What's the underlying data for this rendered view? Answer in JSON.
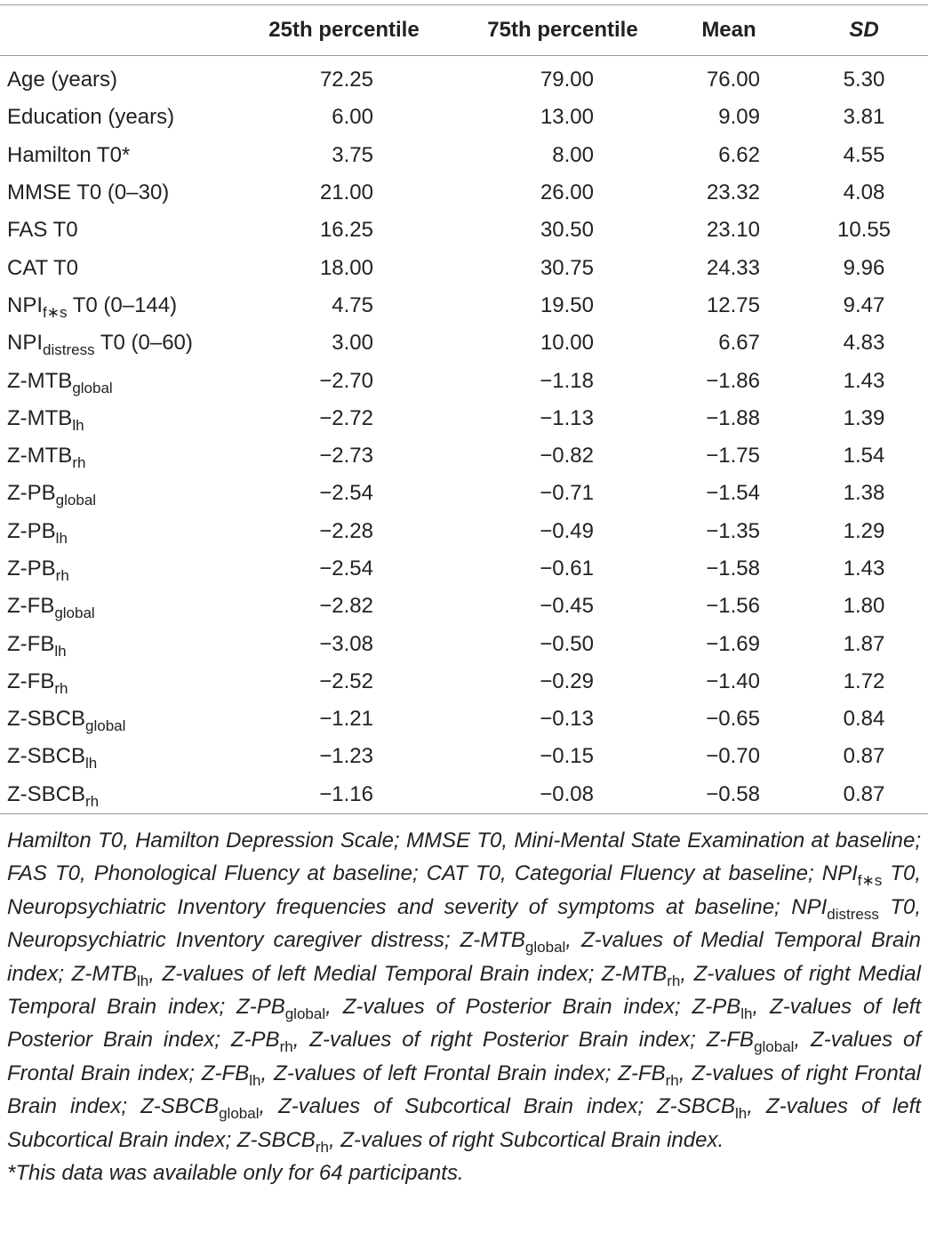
{
  "table": {
    "header": [
      "25th percentile",
      "75th percentile",
      "Mean",
      "SD"
    ],
    "rows": [
      {
        "label": [
          {
            "text": "Age (years)"
          }
        ],
        "cells": [
          "72.25",
          "79.00",
          "76.00",
          "5.30"
        ]
      },
      {
        "label": [
          {
            "text": "Education (years)"
          }
        ],
        "cells": [
          "6.00",
          "13.00",
          "9.09",
          "3.81"
        ]
      },
      {
        "label": [
          {
            "text": "Hamilton T0*"
          }
        ],
        "cells": [
          "3.75",
          "8.00",
          "6.62",
          "4.55"
        ]
      },
      {
        "label": [
          {
            "text": "MMSE T0 (0–30)"
          }
        ],
        "cells": [
          "21.00",
          "26.00",
          "23.32",
          "4.08"
        ]
      },
      {
        "label": [
          {
            "text": "FAS T0"
          }
        ],
        "cells": [
          "16.25",
          "30.50",
          "23.10",
          "10.55"
        ]
      },
      {
        "label": [
          {
            "text": "CAT T0"
          }
        ],
        "cells": [
          "18.00",
          "30.75",
          "24.33",
          "9.96"
        ]
      },
      {
        "label": [
          {
            "text": "NPI"
          },
          {
            "sub": "f∗s"
          },
          {
            "text": " T0 (0–144)"
          }
        ],
        "cells": [
          "4.75",
          "19.50",
          "12.75",
          "9.47"
        ]
      },
      {
        "label": [
          {
            "text": "NPI"
          },
          {
            "sub": "distress"
          },
          {
            "text": " T0 (0–60)"
          }
        ],
        "cells": [
          "3.00",
          "10.00",
          "6.67",
          "4.83"
        ]
      },
      {
        "label": [
          {
            "text": "Z-MTB"
          },
          {
            "sub": "global"
          }
        ],
        "cells": [
          "−2.70",
          "−1.18",
          "−1.86",
          "1.43"
        ]
      },
      {
        "label": [
          {
            "text": "Z-MTB"
          },
          {
            "sub": "lh"
          }
        ],
        "cells": [
          "−2.72",
          "−1.13",
          "−1.88",
          "1.39"
        ]
      },
      {
        "label": [
          {
            "text": "Z-MTB"
          },
          {
            "sub": "rh"
          }
        ],
        "cells": [
          "−2.73",
          "−0.82",
          "−1.75",
          "1.54"
        ]
      },
      {
        "label": [
          {
            "text": "Z-PB"
          },
          {
            "sub": "global"
          }
        ],
        "cells": [
          "−2.54",
          "−0.71",
          "−1.54",
          "1.38"
        ]
      },
      {
        "label": [
          {
            "text": "Z-PB"
          },
          {
            "sub": "lh"
          }
        ],
        "cells": [
          "−2.28",
          "−0.49",
          "−1.35",
          "1.29"
        ]
      },
      {
        "label": [
          {
            "text": "Z-PB"
          },
          {
            "sub": "rh"
          }
        ],
        "cells": [
          "−2.54",
          "−0.61",
          "−1.58",
          "1.43"
        ]
      },
      {
        "label": [
          {
            "text": "Z-FB"
          },
          {
            "sub": "global"
          }
        ],
        "cells": [
          "−2.82",
          "−0.45",
          "−1.56",
          "1.80"
        ]
      },
      {
        "label": [
          {
            "text": "Z-FB"
          },
          {
            "sub": "lh"
          }
        ],
        "cells": [
          "−3.08",
          "−0.50",
          "−1.69",
          "1.87"
        ]
      },
      {
        "label": [
          {
            "text": "Z-FB"
          },
          {
            "sub": "rh"
          }
        ],
        "cells": [
          "−2.52",
          "−0.29",
          "−1.40",
          "1.72"
        ]
      },
      {
        "label": [
          {
            "text": "Z-SBCB"
          },
          {
            "sub": "global"
          }
        ],
        "cells": [
          "−1.21",
          "−0.13",
          "−0.65",
          "0.84"
        ]
      },
      {
        "label": [
          {
            "text": "Z-SBCB"
          },
          {
            "sub": "lh"
          }
        ],
        "cells": [
          "−1.23",
          "−0.15",
          "−0.70",
          "0.87"
        ]
      },
      {
        "label": [
          {
            "text": "Z-SBCB"
          },
          {
            "sub": "rh"
          }
        ],
        "cells": [
          "−1.16",
          "−0.08",
          "−0.58",
          "0.87"
        ]
      }
    ]
  },
  "footnotes": [
    [
      {
        "text": "Hamilton T0, Hamilton Depression Scale; MMSE T0, Mini-Mental State Examination at baseline; FAS T0, Phonological Fluency at baseline; CAT T0, Categorial Fluency at baseline; NPI"
      },
      {
        "sub": "f∗s"
      },
      {
        "text": " T0, Neuropsychiatric Inventory frequencies and severity of symptoms at baseline; NPI"
      },
      {
        "sub": "distress"
      },
      {
        "text": " T0, Neuropsychiatric Inventory caregiver distress; Z-MTB"
      },
      {
        "sub": "global"
      },
      {
        "text": ", Z-values of Medial Temporal Brain index; Z-MTB"
      },
      {
        "sub": "lh"
      },
      {
        "text": ", Z-values of left Medial Temporal Brain index; Z-MTB"
      },
      {
        "sub": "rh"
      },
      {
        "text": ", Z-values of right Medial Temporal Brain index; Z-PB"
      },
      {
        "sub": "global"
      },
      {
        "text": ", Z-values of Posterior Brain index; Z-PB"
      },
      {
        "sub": "lh"
      },
      {
        "text": ", Z-values of left Posterior Brain index; Z-PB"
      },
      {
        "sub": "rh"
      },
      {
        "text": ", Z-values of right Posterior Brain index; Z-FB"
      },
      {
        "sub": "global"
      },
      {
        "text": ", Z-values of Frontal Brain index; Z-FB"
      },
      {
        "sub": "lh"
      },
      {
        "text": ", Z-values of left Frontal Brain index; Z-FB"
      },
      {
        "sub": "rh"
      },
      {
        "text": ", Z-values of right Frontal Brain index; Z-SBCB"
      },
      {
        "sub": "global"
      },
      {
        "text": ", Z-values of Subcortical Brain index; Z-SBCB"
      },
      {
        "sub": "lh"
      },
      {
        "text": ", Z-values of left Subcortical Brain index; Z-SBCB"
      },
      {
        "sub": "rh"
      },
      {
        "text": ", Z-values of right Subcortical Brain index."
      }
    ],
    [
      {
        "text": "*This data was available only for 64 participants."
      }
    ]
  ]
}
